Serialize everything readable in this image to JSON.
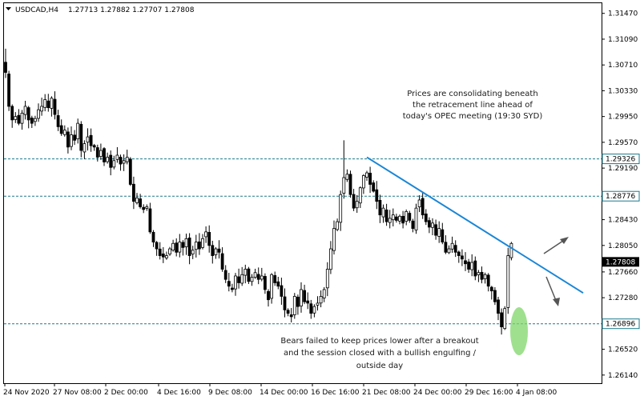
{
  "window": {
    "symbol_header": "USDCAD,H4",
    "ohlc_header": "1.27713 1.27882 1.27707 1.27808",
    "menu_icon": "triangle-down-icon"
  },
  "annotations": {
    "top_note": [
      "Prices are consolidating beneath",
      "the retracement line ahead of",
      "today's OPEC meeting (19:30 SYD)"
    ],
    "bottom_note": [
      "Bears failed to keep prices lower after a breakout",
      "and the session closed with a bullish engulfing /",
      "outside day"
    ]
  },
  "colors": {
    "bull_candle": "#ffffff",
    "bear_candle": "#000000",
    "trendline": "#1a86d6",
    "level_line": "#1a7a8c",
    "highlight": "#7fd66a",
    "arrow": "#555555"
  },
  "chart_data": {
    "type": "candlestick",
    "ylim": [
      1.2602,
      1.3162
    ],
    "y_ticks": [
      "1.31470",
      "1.31090",
      "1.30710",
      "1.30330",
      "1.29950",
      "1.29570",
      "1.29190",
      "1.28810",
      "1.28430",
      "1.28050",
      "1.27660",
      "1.27280",
      "1.26900",
      "1.26520",
      "1.26140"
    ],
    "x_ticks": [
      "24 Nov 2020",
      "27 Nov 08:00",
      "2 Dec 00:00",
      "4 Dec 16:00",
      "9 Dec 08:00",
      "14 Dec 00:00",
      "16 Dec 16:00",
      "21 Dec 08:00",
      "24 Dec 00:00",
      "29 Dec 16:00",
      "4 Jan 08:00"
    ],
    "levels": [
      {
        "label": "1.29326",
        "value": 1.29326
      },
      {
        "label": "1.28776",
        "value": 1.28776
      },
      {
        "label": "1.26896",
        "value": 1.26896
      }
    ],
    "current_price": {
      "label": "1.27808",
      "value": 1.27808
    },
    "trendline": {
      "from": {
        "bar": 110,
        "price": 1.2935
      },
      "to": {
        "bar": 170,
        "price": 1.2735
      }
    },
    "closes": [
      1.306,
      1.301,
      1.299,
      1.2995,
      1.2985,
      1.3,
      1.301,
      1.299,
      1.2985,
      1.2992,
      1.3005,
      1.301,
      1.302,
      1.3008,
      1.3022,
      1.2998,
      1.298,
      1.297,
      1.2975,
      1.295,
      1.2968,
      1.296,
      1.2985,
      1.2945,
      1.2955,
      1.2965,
      1.2952,
      1.295,
      1.2935,
      1.2945,
      1.2928,
      1.2935,
      1.292,
      1.293,
      1.2938,
      1.2925,
      1.293,
      1.2935,
      1.2895,
      1.287,
      1.2875,
      1.2862,
      1.2858,
      1.2862,
      1.2825,
      1.281,
      1.28,
      1.279,
      1.2788,
      1.279,
      1.28,
      1.2808,
      1.2795,
      1.281,
      1.2802,
      1.2815,
      1.279,
      1.2798,
      1.281,
      1.28,
      1.2815,
      1.2825,
      1.2805,
      1.279,
      1.28,
      1.2795,
      1.277,
      1.2755,
      1.2745,
      1.274,
      1.276,
      1.275,
      1.2762,
      1.277,
      1.2752,
      1.2758,
      1.2765,
      1.2755,
      1.276,
      1.274,
      1.2725,
      1.2762,
      1.275,
      1.2745,
      1.273,
      1.271,
      1.2705,
      1.27,
      1.273,
      1.2715,
      1.274,
      1.2722,
      1.272,
      1.2705,
      1.2715,
      1.272,
      1.273,
      1.274,
      1.277,
      1.28,
      1.283,
      1.284,
      1.288,
      1.2905,
      1.291,
      1.288,
      1.286,
      1.287,
      1.289,
      1.2908,
      1.2912,
      1.2895,
      1.2885,
      1.287,
      1.285,
      1.286,
      1.284,
      1.2845,
      1.285,
      1.2842,
      1.2848,
      1.2838,
      1.2855,
      1.2842,
      1.283,
      1.286,
      1.2872,
      1.285,
      1.284,
      1.2832,
      1.2838,
      1.282,
      1.283,
      1.281,
      1.2795,
      1.28,
      1.2808,
      1.2795,
      1.279,
      1.2785,
      1.2778,
      1.277,
      1.278,
      1.276,
      1.2765,
      1.2755,
      1.2762,
      1.2745,
      1.2738,
      1.2722,
      1.2705,
      1.2685,
      1.2712,
      1.279,
      1.2808
    ]
  }
}
